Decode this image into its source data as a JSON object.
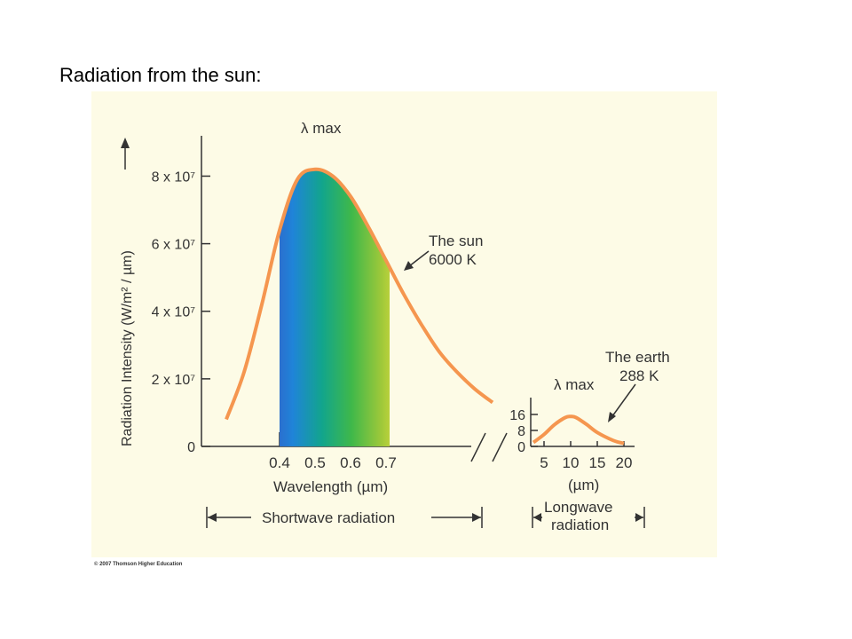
{
  "slide": {
    "title": "Radiation from the sun:"
  },
  "credit": "© 2007 Thomson Higher Education",
  "colors": {
    "background": "#fdfbe6",
    "curve": "#f5964f",
    "axis": "#333333"
  },
  "chart_data": [
    {
      "type": "line",
      "ylabel": "Radiation Intensity (W/m² / µm)",
      "xlabel": "Wavelength (µm)",
      "y_ticks": [
        {
          "value": 0,
          "label": "0"
        },
        {
          "value": 20000000,
          "label": "2 x 10⁷"
        },
        {
          "value": 40000000,
          "label": "4 x 10⁷"
        },
        {
          "value": 60000000,
          "label": "6 x 10⁷"
        },
        {
          "value": 80000000,
          "label": "8 x 10⁷"
        }
      ],
      "x_ticks": [
        "0.4",
        "0.5",
        "0.6",
        "0.7"
      ],
      "ylim": [
        0,
        88000000
      ],
      "series": [
        {
          "name": "The sun 6000 K",
          "x": [
            0.25,
            0.3,
            0.35,
            0.4,
            0.45,
            0.5,
            0.55,
            0.6,
            0.65,
            0.7,
            0.75,
            0.8,
            0.85,
            0.9,
            0.95,
            1.0
          ],
          "y": [
            8000000,
            22000000,
            42000000,
            64000000,
            79000000,
            82000000,
            80000000,
            74000000,
            65000000,
            55000000,
            45000000,
            36000000,
            28000000,
            22000000,
            17000000,
            13000000
          ]
        }
      ],
      "annotations": {
        "peak": "λ max",
        "curve_label_line1": "The sun",
        "curve_label_line2": "6000 K",
        "band": "Shortwave radiation"
      }
    },
    {
      "type": "line",
      "xlabel": "(µm)",
      "y_ticks": [
        "0",
        "8",
        "16"
      ],
      "x_ticks": [
        "5",
        "10",
        "15",
        "20"
      ],
      "ylim": [
        0,
        20
      ],
      "series": [
        {
          "name": "The earth 288 K",
          "x": [
            3,
            5,
            7,
            9,
            10,
            11,
            13,
            15,
            18,
            20
          ],
          "y": [
            2,
            6,
            11,
            14.5,
            15,
            14.5,
            11,
            7,
            3,
            1.5
          ]
        }
      ],
      "annotations": {
        "peak": "λ max",
        "curve_label_line1": "The earth",
        "curve_label_line2": "288 K",
        "band_line1": "Longwave",
        "band_line2": "radiation"
      }
    }
  ]
}
